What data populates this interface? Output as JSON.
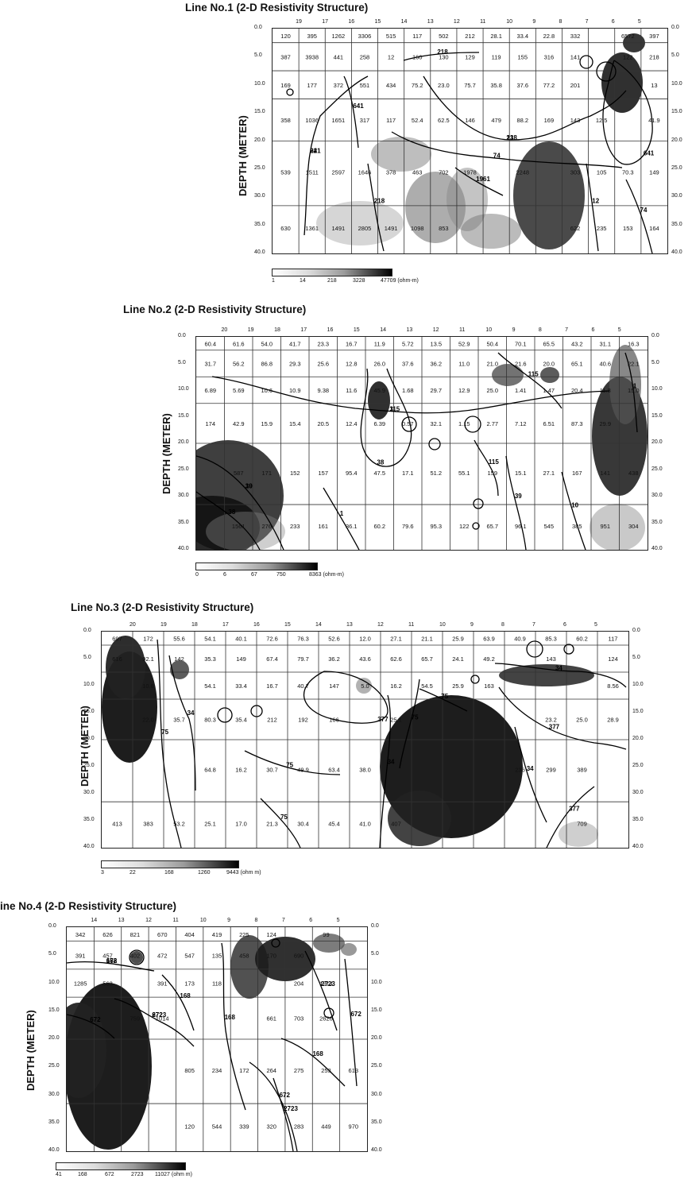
{
  "panels": [
    {
      "title": "Line No.1 (2-D Resistivity Structure)",
      "ylabel": "DEPTH (METER)",
      "x_labels": [
        "19",
        "17",
        "16",
        "15",
        "14",
        "13",
        "12",
        "11",
        "10",
        "9",
        "8",
        "7",
        "6",
        "5"
      ],
      "depth_labels": [
        "0.0",
        "5.0",
        "10.0",
        "15.0",
        "20.0",
        "25.0",
        "30.0",
        "35.0",
        "40.0"
      ],
      "scale_ticks": [
        "1",
        "14",
        "218",
        "3228",
        "47709 (ohm-m)"
      ],
      "rows": [
        [
          "120",
          "395",
          "1262",
          "3306",
          "515",
          "117",
          "502",
          "212",
          "28.1",
          "33.4",
          "22.8",
          "332",
          "",
          "6572",
          "397"
        ],
        [
          "387",
          "3938",
          "441",
          "258",
          "12",
          "160",
          "130",
          "129",
          "119",
          "155",
          "316",
          "141",
          "",
          "122",
          "218"
        ],
        [
          "169",
          "177",
          "372",
          "551",
          "434",
          "75.2",
          "23.0",
          "75.7",
          "35.8",
          "37.6",
          "77.2",
          "201",
          "",
          "",
          "13"
        ],
        [
          "358",
          "1036",
          "1651",
          "317",
          "117",
          "52.4",
          "62.5",
          "146",
          "479",
          "88.2",
          "169",
          "143",
          "12.5",
          "",
          "41.9"
        ],
        [
          "539",
          "1511",
          "2597",
          "1646",
          "378",
          "463",
          "702",
          "1978",
          "",
          "2248",
          "",
          "303",
          "105",
          "70.3",
          "149"
        ],
        [
          "630",
          "1361",
          "1491",
          "2805",
          "1491",
          "1098",
          "853",
          "",
          "",
          "",
          "",
          "622",
          "235",
          "153",
          "164"
        ]
      ],
      "contours": [
        "641",
        "218",
        "74",
        "12",
        "218",
        "641",
        "1961",
        "218",
        "74",
        "641",
        "22",
        "13"
      ]
    },
    {
      "title": "Line No.2 (2-D Resistivity Structure)",
      "ylabel": "DEPTH (METER)",
      "x_labels": [
        "20",
        "19",
        "18",
        "17",
        "16",
        "15",
        "14",
        "13",
        "12",
        "11",
        "10",
        "9",
        "8",
        "7",
        "6",
        "5"
      ],
      "depth_labels": [
        "0.0",
        "5.0",
        "10.0",
        "15.0",
        "20.0",
        "25.0",
        "30.0",
        "35.0",
        "40.0"
      ],
      "scale_ticks": [
        "0",
        "6",
        "67",
        "750",
        "8363 (ohm-m)"
      ],
      "rows": [
        [
          "60.4",
          "61.6",
          "54.0",
          "41.7",
          "23.3",
          "16.7",
          "11.9",
          "5.72",
          "13.5",
          "52.9",
          "50.4",
          "70.1",
          "65.5",
          "43.2",
          "31.1",
          "16.3"
        ],
        [
          "31.7",
          "56.2",
          "86.8",
          "29.3",
          "25.6",
          "12.8",
          "26.0",
          "37.6",
          "36.2",
          "11.0",
          "21.0",
          "21.6",
          "20.0",
          "65.1",
          "40.6",
          "22.1"
        ],
        [
          "6.89",
          "5.69",
          "10.6",
          "10.9",
          "9.38",
          "11.6",
          "45.9",
          "1.68",
          "29.7",
          "12.9",
          "25.0",
          "1.41",
          "1.47",
          "20.4",
          "11.8",
          "15.0"
        ],
        [
          "174",
          "42.9",
          "15.9",
          "15.4",
          "20.5",
          "12.4",
          "6.39",
          "0.57",
          "32.1",
          "1.15",
          "2.77",
          "7.12",
          "6.51",
          "87.3",
          "29.9",
          ""
        ],
        [
          "",
          "587",
          "171",
          "152",
          "157",
          "95.4",
          "47.5",
          "17.1",
          "51.2",
          "55.1",
          "159",
          "15.1",
          "27.1",
          "167",
          "141",
          "438"
        ],
        [
          "",
          "1561",
          "276",
          "233",
          "161",
          "36.1",
          "60.2",
          "79.6",
          "95.3",
          "122",
          "65.7",
          "96.1",
          "545",
          "385",
          "951",
          "304"
        ]
      ],
      "contours": [
        "115",
        "10",
        "38",
        "1",
        "38",
        "115",
        "39",
        "10",
        "1",
        "115",
        "3",
        "39"
      ]
    },
    {
      "title": "Line No.3 (2-D Resistivity Structure)",
      "ylabel": "DEPTH (METER)",
      "x_labels": [
        "20",
        "19",
        "18",
        "17",
        "16",
        "15",
        "14",
        "13",
        "12",
        "11",
        "10",
        "9",
        "8",
        "7",
        "6",
        "5"
      ],
      "depth_labels": [
        "0.0",
        "5.0",
        "10.0",
        "15.0",
        "20.0",
        "25.0",
        "30.0",
        "35.0",
        "40.0"
      ],
      "scale_ticks": [
        "3",
        "22",
        "168",
        "1260",
        "9443 (ohm m)"
      ],
      "rows": [
        [
          "697",
          "172",
          "55.6",
          "54.1",
          "40.1",
          "72.6",
          "76.3",
          "52.6",
          "12.0",
          "27.1",
          "21.1",
          "25.9",
          "63.9",
          "40.9",
          "85.3",
          "60.2",
          "117"
        ],
        [
          "616",
          "92.1",
          "142",
          "35.3",
          "149",
          "67.4",
          "79.7",
          "36.2",
          "43.6",
          "62.6",
          "65.7",
          "24.1",
          "49.2",
          "",
          "143",
          "",
          "124"
        ],
        [
          "",
          "10.8",
          "",
          "54.1",
          "33.4",
          "16.7",
          "40.7",
          "147",
          "5.0",
          "16.2",
          "54.5",
          "25.9",
          "163",
          "",
          "",
          "",
          "8.56"
        ],
        [
          "",
          "22.0",
          "35.7",
          "80.3",
          "35.4",
          "212",
          "192",
          "166",
          "",
          "25.1",
          "",
          "",
          "",
          "",
          "23.2",
          "25.0",
          "28.9"
        ],
        [
          "",
          "",
          "",
          "64.8",
          "16.2",
          "30.7",
          "49.9",
          "63.4",
          "38.0",
          "",
          "",
          "",
          "",
          "236",
          "299",
          "389",
          ""
        ],
        [
          "413",
          "383",
          "53.2",
          "25.1",
          "17.0",
          "21.3",
          "30.4",
          "45.4",
          "41.0",
          "407",
          "",
          "",
          "",
          "",
          "",
          "709",
          ""
        ]
      ],
      "contours": [
        "75",
        "34",
        "377",
        "75",
        "34",
        "75",
        "34",
        "377",
        "75",
        "34",
        "377",
        "75"
      ]
    },
    {
      "title": "ine No.4 (2-D Resistivity Structure)",
      "ylabel": "DEPTH (METER)",
      "x_labels": [
        "14",
        "13",
        "12",
        "11",
        "10",
        "9",
        "8",
        "7",
        "6",
        "5"
      ],
      "depth_labels": [
        "0.0",
        "5.0",
        "10.0",
        "15.0",
        "20.0",
        "25.0",
        "30.0",
        "35.0",
        "40.0"
      ],
      "scale_ticks": [
        "41",
        "168",
        "672",
        "2723",
        "11027 (ohm m)"
      ],
      "rows": [
        [
          "342",
          "626",
          "821",
          "670",
          "404",
          "419",
          "225",
          "124",
          "",
          "99"
        ],
        [
          "391",
          "457",
          "402",
          "472",
          "547",
          "135",
          "458",
          "170",
          "690",
          ""
        ],
        [
          "1285",
          "563",
          "",
          "391",
          "173",
          "118",
          "",
          "",
          "204",
          "1214"
        ],
        [
          "",
          "",
          "759",
          "1014",
          "",
          "",
          "",
          "661",
          "703",
          "2626"
        ],
        [
          "",
          "",
          "",
          "",
          "805",
          "234",
          "172",
          "264",
          "275",
          "253",
          "613"
        ],
        [
          "",
          "",
          "",
          "",
          "120",
          "544",
          "339",
          "320",
          "283",
          "449",
          "970"
        ]
      ],
      "contours": [
        "672",
        "2723",
        "168",
        "672",
        "2723",
        "168",
        "672",
        "168",
        "672",
        "2723",
        "168",
        "672"
      ]
    }
  ]
}
